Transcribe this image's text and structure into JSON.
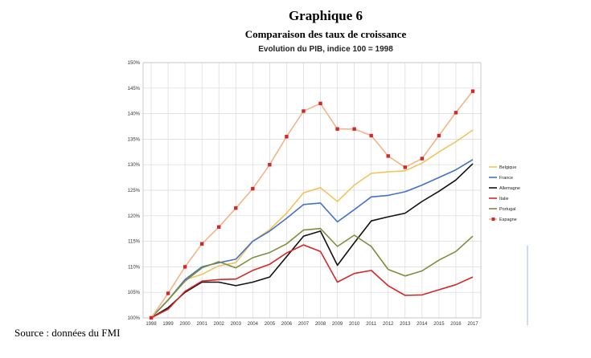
{
  "heading": "Graphique 6",
  "subheading": "Comparaison des taux de croissance",
  "source": "Source : données du FMI",
  "chart_data": {
    "type": "line",
    "title": "Evolution du PIB, indice 100 = 1998",
    "xlabel": "",
    "ylabel": "",
    "x": [
      "1998",
      "1999",
      "2000",
      "2001",
      "2002",
      "2003",
      "2004",
      "2005",
      "2006",
      "2007",
      "2008",
      "2009",
      "2010",
      "2011",
      "2012",
      "2013",
      "2014",
      "2015",
      "2016",
      "2017"
    ],
    "ylim": [
      100,
      150
    ],
    "yticks": [
      "100%",
      "105%",
      "110%",
      "115%",
      "120%",
      "125%",
      "130%",
      "135%",
      "140%",
      "145%",
      "150%"
    ],
    "grid": true,
    "legend_position": "right",
    "series": [
      {
        "name": "Belgique",
        "color": "#f2c45a",
        "marker": false,
        "values": [
          100,
          103.5,
          107.5,
          108.5,
          110.2,
          110.8,
          115.0,
          117.3,
          120.5,
          124.5,
          125.5,
          122.8,
          126.0,
          128.3,
          128.6,
          128.8,
          130.3,
          132.5,
          134.5,
          136.8
        ]
      },
      {
        "name": "France",
        "color": "#4472c4",
        "marker": false,
        "values": [
          100,
          103.5,
          107.5,
          110.0,
          110.8,
          111.5,
          115.0,
          117.0,
          119.5,
          122.2,
          122.5,
          118.8,
          121.2,
          123.7,
          124.0,
          124.7,
          126.0,
          127.5,
          129.0,
          131.0
        ]
      },
      {
        "name": "Allemagne",
        "color": "#111111",
        "marker": false,
        "values": [
          100,
          102.0,
          105.0,
          107.0,
          107.0,
          106.3,
          107.0,
          108.0,
          112.0,
          116.0,
          117.0,
          110.3,
          114.7,
          119.0,
          119.8,
          120.5,
          122.8,
          124.8,
          127.0,
          130.2
        ]
      },
      {
        "name": "Italie",
        "color": "#d62728",
        "marker": false,
        "values": [
          100,
          101.7,
          105.2,
          107.2,
          107.5,
          107.6,
          109.3,
          110.5,
          112.7,
          114.3,
          113.0,
          107.0,
          108.7,
          109.3,
          106.3,
          104.4,
          104.5,
          105.5,
          106.5,
          108.0
        ]
      },
      {
        "name": "Portugal",
        "color": "#7f8c3c",
        "marker": false,
        "values": [
          100,
          103.5,
          107.2,
          109.8,
          111.0,
          109.8,
          111.8,
          112.8,
          114.5,
          117.2,
          117.5,
          114.0,
          116.2,
          114.0,
          109.5,
          108.2,
          109.2,
          111.3,
          113.0,
          116.0
        ]
      },
      {
        "name": "Espagne",
        "color": "#f2b48a",
        "marker": true,
        "marker_color": "#d62728",
        "values": [
          100,
          104.8,
          110.0,
          114.5,
          117.8,
          121.5,
          125.3,
          130.0,
          135.5,
          140.5,
          142.0,
          137.0,
          137.0,
          135.7,
          131.7,
          129.5,
          131.2,
          135.7,
          140.2,
          144.4
        ]
      }
    ]
  }
}
